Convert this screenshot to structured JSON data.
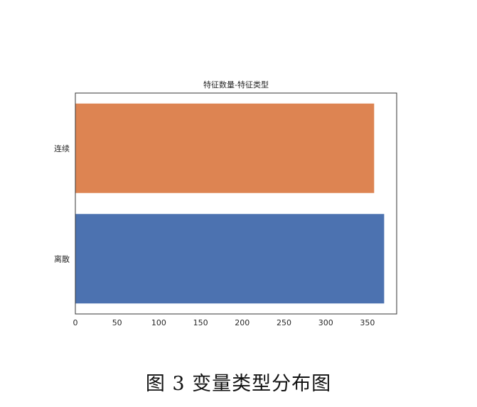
{
  "chart_data": {
    "type": "bar",
    "orientation": "horizontal",
    "title": "特征数量-特征类型",
    "xlabel": "",
    "ylabel": "",
    "categories": [
      "连续",
      "离散"
    ],
    "values": [
      358,
      370
    ],
    "colors": [
      "#dd8452",
      "#4c72b0"
    ],
    "xlim": [
      0,
      385
    ],
    "xticks": [
      0,
      50,
      100,
      150,
      200,
      250,
      300,
      350
    ],
    "grid": false,
    "legend": "none"
  },
  "caption": "图 3 变量类型分布图"
}
